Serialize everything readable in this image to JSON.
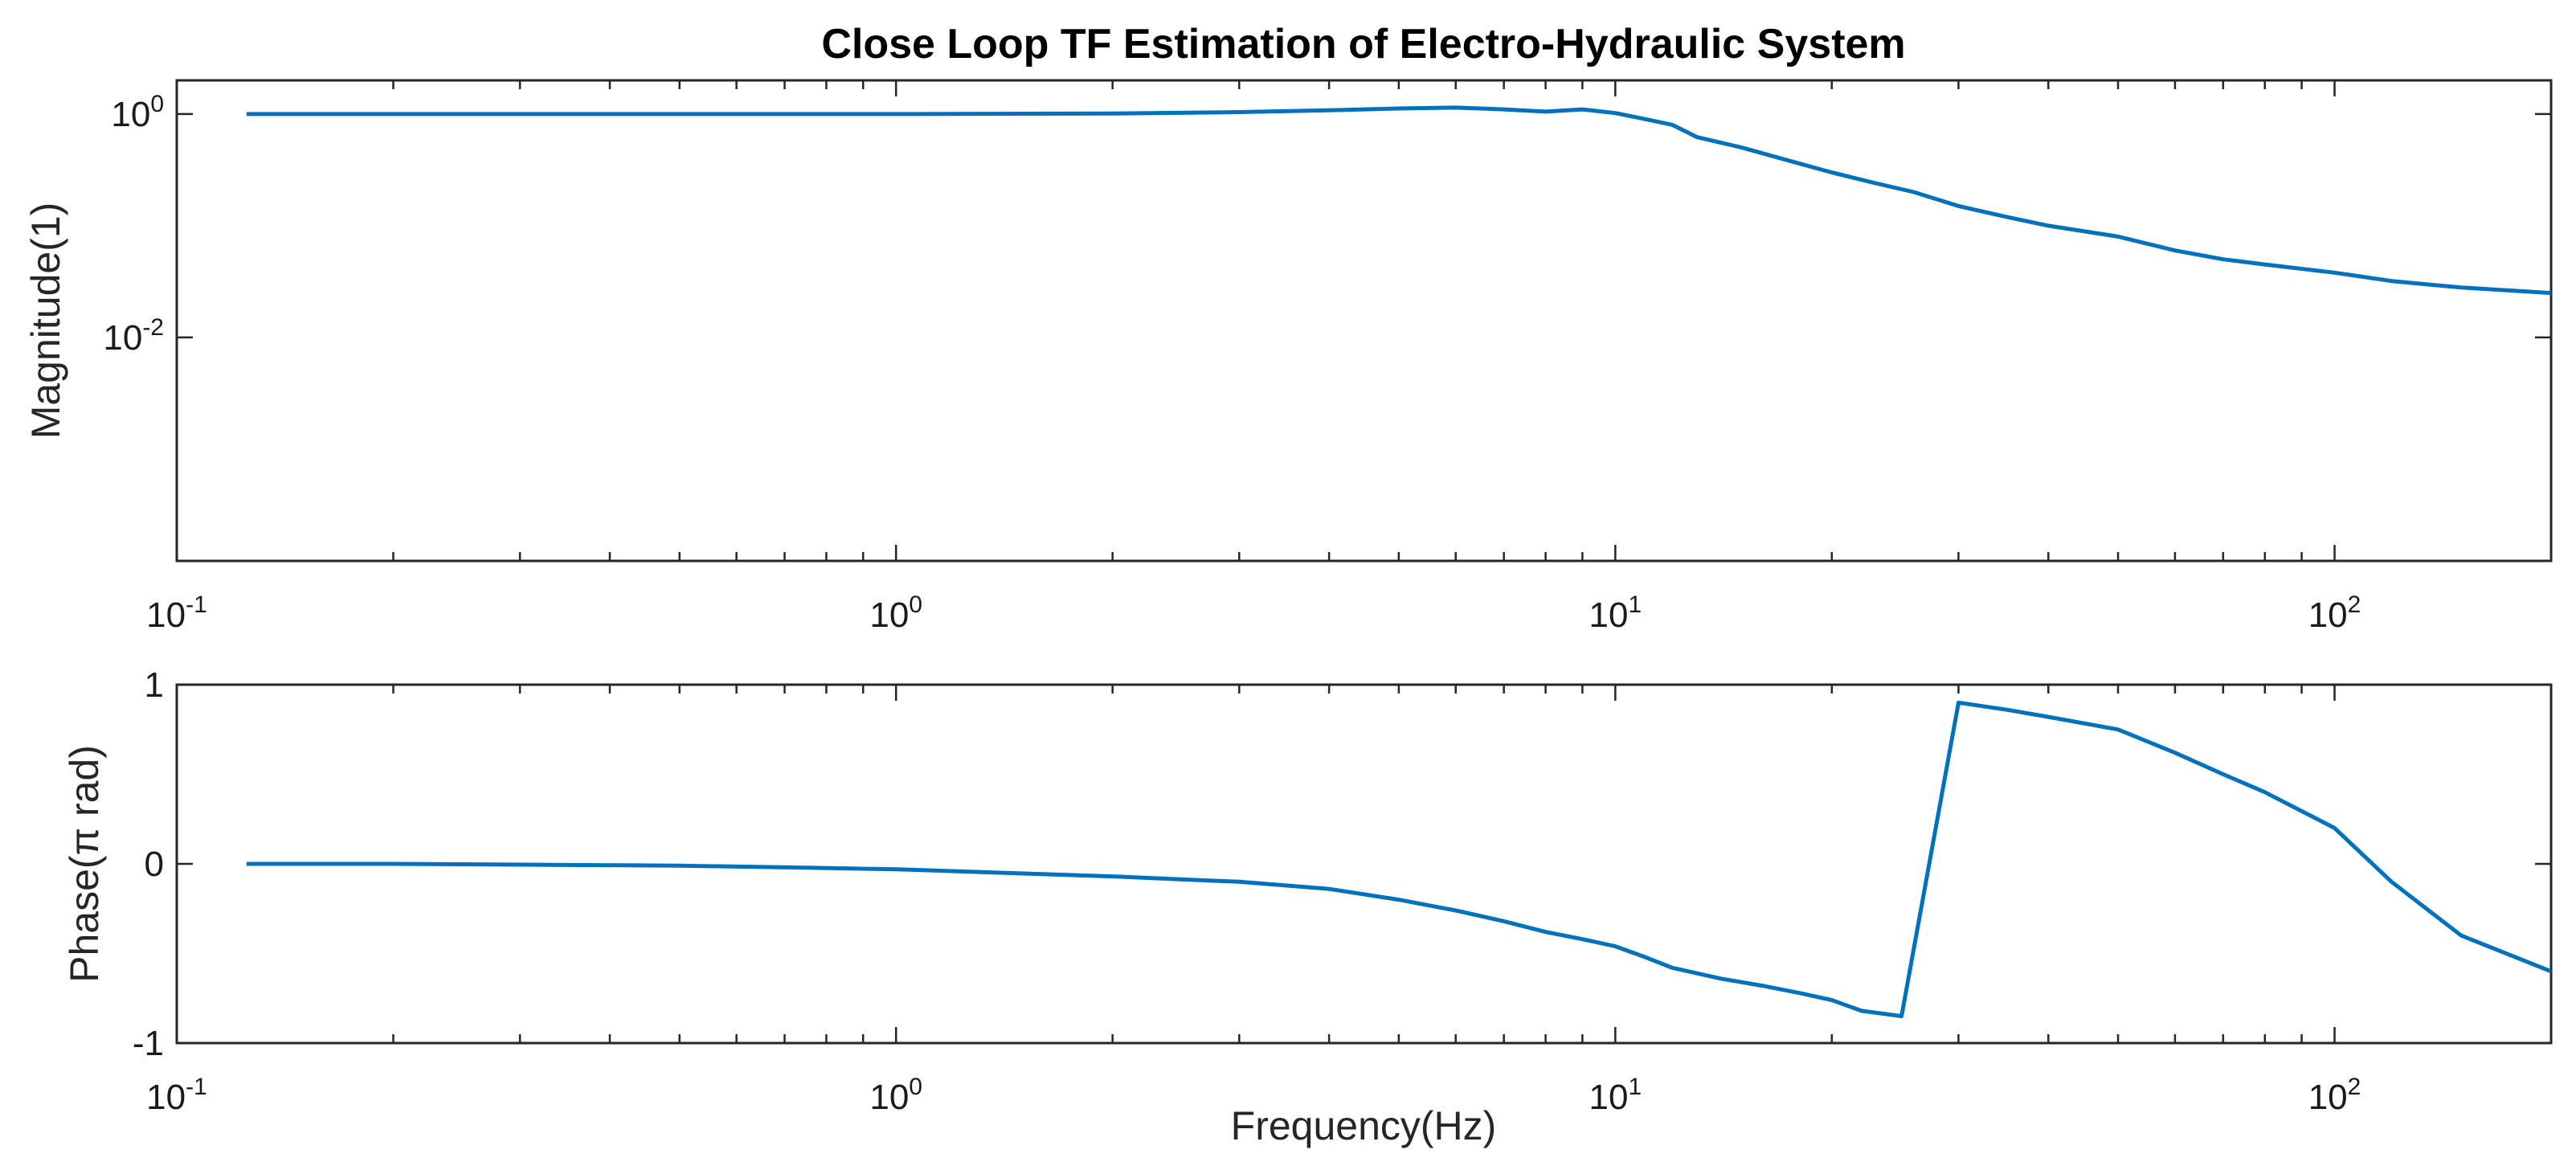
{
  "chart_data": [
    {
      "type": "line",
      "title": "Close Loop TF Estimation of Electro-Hydraulic System",
      "xlabel": "",
      "ylabel": "Magnitude(1)",
      "xscale": "log",
      "yscale": "log",
      "xlim": [
        0.1,
        200
      ],
      "ylim": [
        0.0001,
        2.0
      ],
      "x_ticks": [
        {
          "base": "10",
          "exp": "-1",
          "value": 0.1
        },
        {
          "base": "10",
          "exp": "0",
          "value": 1
        },
        {
          "base": "10",
          "exp": "1",
          "value": 10
        },
        {
          "base": "10",
          "exp": "2",
          "value": 100
        }
      ],
      "y_ticks": [
        {
          "base": "10",
          "exp": "0",
          "value": 1
        },
        {
          "base": "10",
          "exp": "-2",
          "value": 0.01
        }
      ],
      "series": [
        {
          "name": "Magnitude",
          "color": "#0072BD",
          "x": [
            0.125,
            0.2,
            0.5,
            1,
            2,
            3,
            4,
            5,
            6,
            7,
            8,
            9,
            10,
            11,
            12,
            13,
            15,
            17,
            20,
            23,
            26,
            30,
            35,
            40,
            50,
            60,
            70,
            80,
            100,
            120,
            150,
            200
          ],
          "y": [
            1.0,
            1.0,
            1.0,
            1.0,
            1.01,
            1.04,
            1.08,
            1.12,
            1.14,
            1.1,
            1.05,
            1.1,
            1.02,
            0.9,
            0.8,
            0.62,
            0.5,
            0.4,
            0.3,
            0.24,
            0.2,
            0.15,
            0.12,
            0.1,
            0.08,
            0.06,
            0.05,
            0.045,
            0.038,
            0.032,
            0.028,
            0.025
          ]
        }
      ]
    },
    {
      "type": "line",
      "title": "",
      "xlabel": "Frequency(Hz)",
      "ylabel": "Phase(π rad)",
      "xscale": "log",
      "yscale": "linear",
      "xlim": [
        0.1,
        200
      ],
      "ylim": [
        -1,
        1
      ],
      "x_ticks": [
        {
          "base": "10",
          "exp": "-1",
          "value": 0.1
        },
        {
          "base": "10",
          "exp": "0",
          "value": 1
        },
        {
          "base": "10",
          "exp": "1",
          "value": 10
        },
        {
          "base": "10",
          "exp": "2",
          "value": 100
        }
      ],
      "y_ticks": [
        {
          "label": "1",
          "value": 1
        },
        {
          "label": "0",
          "value": 0
        },
        {
          "label": "-1",
          "value": -1
        }
      ],
      "series": [
        {
          "name": "Phase",
          "color": "#0072BD",
          "x": [
            0.125,
            0.2,
            0.5,
            1,
            2,
            3,
            4,
            5,
            6,
            7,
            8,
            9,
            10,
            11,
            12,
            14,
            16,
            18,
            20,
            22,
            25,
            30,
            35,
            40,
            50,
            60,
            70,
            80,
            100,
            120,
            150,
            200
          ],
          "y": [
            0.0,
            0.0,
            -0.01,
            -0.03,
            -0.07,
            -0.1,
            -0.14,
            -0.2,
            -0.26,
            -0.32,
            -0.38,
            -0.42,
            -0.46,
            -0.52,
            -0.58,
            -0.64,
            -0.68,
            -0.72,
            -0.76,
            -0.82,
            -0.85,
            0.9,
            0.86,
            0.82,
            0.75,
            0.62,
            0.5,
            0.4,
            0.2,
            -0.1,
            -0.4,
            -0.6
          ]
        }
      ]
    }
  ]
}
